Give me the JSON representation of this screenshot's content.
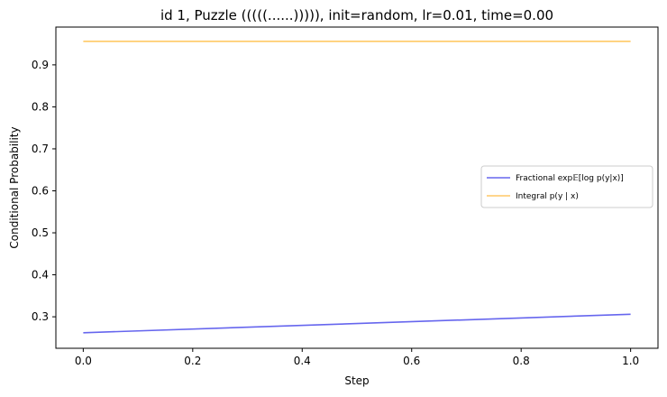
{
  "chart_data": {
    "type": "line",
    "title": "id 1, Puzzle (((((......))))), init=random, lr=0.01, time=0.00",
    "xlabel": "Step",
    "ylabel": "Conditional Probability",
    "xlim": [
      -0.05,
      1.05
    ],
    "ylim": [
      0.225,
      0.99
    ],
    "xticks": [
      0.0,
      0.2,
      0.4,
      0.6,
      0.8,
      1.0
    ],
    "xtick_labels": [
      "0.0",
      "0.2",
      "0.4",
      "0.6",
      "0.8",
      "1.0"
    ],
    "yticks": [
      0.3,
      0.4,
      0.5,
      0.6,
      0.7,
      0.8,
      0.9
    ],
    "ytick_labels": [
      "0.3",
      "0.4",
      "0.5",
      "0.6",
      "0.7",
      "0.8",
      "0.9"
    ],
    "grid": false,
    "legend_position": "center-right",
    "series": [
      {
        "name": "Fractional exp𝔼[log p(y|x)]",
        "color": "#6666ee",
        "x": [
          0.0,
          1.0
        ],
        "values": [
          0.262,
          0.306
        ]
      },
      {
        "name": "Integral p(y | x)",
        "color": "#ffc966",
        "x": [
          0.0,
          1.0
        ],
        "values": [
          0.956,
          0.956
        ]
      }
    ]
  }
}
